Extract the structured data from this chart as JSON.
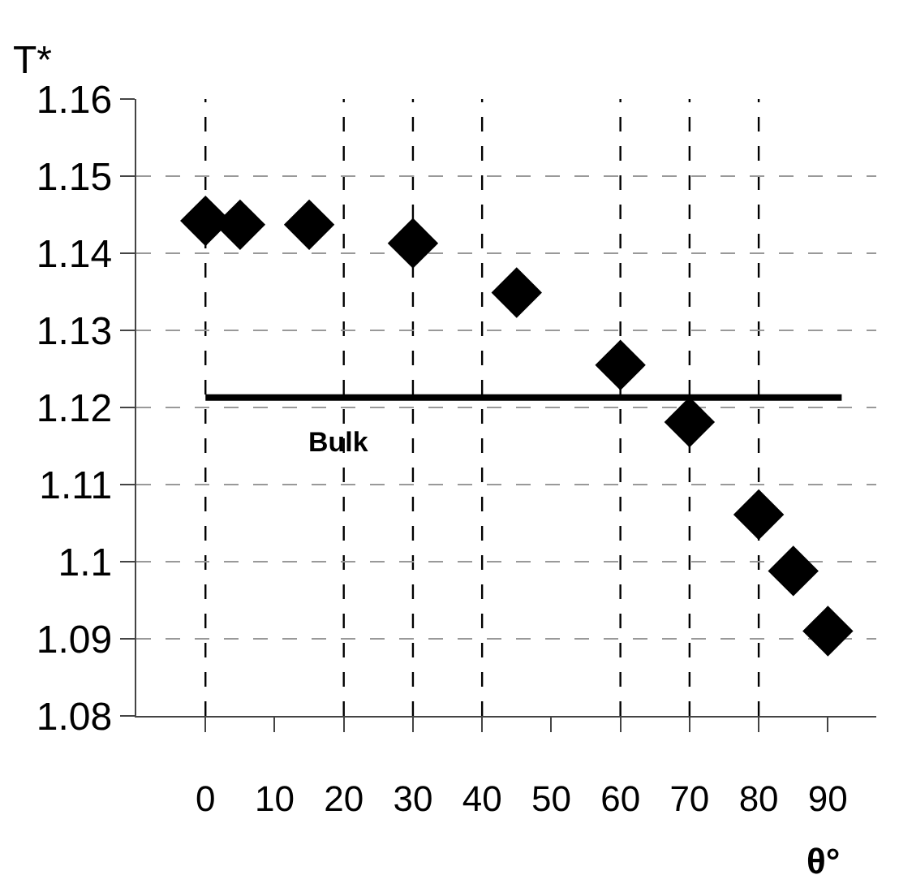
{
  "chart_data": {
    "type": "scatter",
    "xlabel": "θ°",
    "ylabel": "T*",
    "series": [
      {
        "color": "#000000",
        "marker": "diamond",
        "x": [
          0,
          5,
          15,
          30,
          45,
          60,
          70,
          80,
          85,
          90
        ],
        "values": [
          1.1442,
          1.1437,
          1.1437,
          1.1413,
          1.1349,
          1.1255,
          1.1181,
          1.1061,
          1.0988,
          1.091
        ]
      },
      {
        "type": "line",
        "name": "Bulk",
        "color": "#000000",
        "marker": "none",
        "line_style": "solid",
        "x": [
          0,
          92
        ],
        "values": [
          1.1213,
          1.1213
        ]
      }
    ],
    "ref_lines": [
      {
        "axis": "x",
        "value": 0,
        "color": "#000000",
        "line_style": "dashed"
      },
      {
        "axis": "x",
        "value": 20,
        "color": "#000000",
        "line_style": "dashed"
      },
      {
        "axis": "x",
        "value": 30,
        "color": "#000000",
        "line_style": "dashed"
      },
      {
        "axis": "x",
        "value": 40,
        "color": "#000000",
        "line_style": "dashed"
      },
      {
        "axis": "x",
        "value": 60,
        "color": "#000000",
        "line_style": "dashed"
      },
      {
        "axis": "x",
        "value": 70,
        "color": "#000000",
        "line_style": "dashed"
      },
      {
        "axis": "x",
        "value": 80,
        "color": "#000000",
        "line_style": "dashed"
      }
    ],
    "xlim": [
      -10,
      97
    ],
    "xticks": [
      0,
      10,
      20,
      30,
      40,
      50,
      60,
      70,
      80,
      90
    ],
    "ylim": [
      1.08,
      1.16
    ],
    "yticks": [
      1.08,
      1.09,
      1.1,
      1.11,
      1.12,
      1.13,
      1.14,
      1.15,
      1.16
    ],
    "grid": "y"
  }
}
